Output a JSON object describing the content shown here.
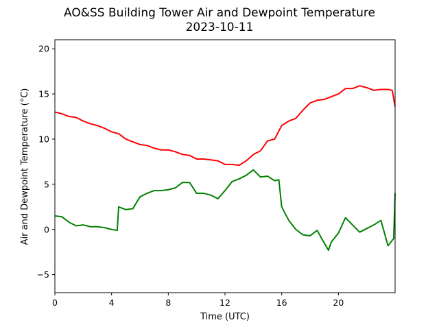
{
  "chart_data": {
    "type": "line",
    "title": "AO&SS Building Tower Air and Dewpoint Temperature",
    "subtitle": "2023-10-11",
    "xlabel": "Time (UTC)",
    "ylabel": "Air and Dewpoint Temperature (°C)",
    "xlim": [
      0,
      24
    ],
    "ylim": [
      -7,
      21
    ],
    "xticks": [
      0,
      4,
      8,
      12,
      16,
      20
    ],
    "yticks": [
      -5,
      0,
      5,
      10,
      15,
      20
    ],
    "grid": false,
    "series": [
      {
        "color": "#ff0000",
        "x": [
          0,
          0.5,
          1,
          1.5,
          2,
          2.5,
          3,
          3.5,
          4,
          4.5,
          5,
          5.5,
          6,
          6.5,
          7,
          7.5,
          8,
          8.5,
          9,
          9.5,
          10,
          10.5,
          11,
          11.5,
          12,
          12.5,
          13,
          13.5,
          14,
          14.5,
          15,
          15.5,
          16,
          16.5,
          17,
          17.5,
          18,
          18.5,
          19,
          19.5,
          20,
          20.5,
          21,
          21.5,
          22,
          22.5,
          23,
          23.5,
          23.8,
          24
        ],
        "y": [
          13.0,
          12.8,
          12.5,
          12.4,
          12.0,
          11.7,
          11.5,
          11.2,
          10.8,
          10.6,
          10.0,
          9.7,
          9.4,
          9.3,
          9.0,
          8.8,
          8.8,
          8.6,
          8.3,
          8.2,
          7.8,
          7.8,
          7.7,
          7.6,
          7.2,
          7.2,
          7.1,
          7.6,
          8.3,
          8.7,
          9.8,
          10.0,
          11.5,
          12.0,
          12.3,
          13.2,
          14.0,
          14.3,
          14.4,
          14.7,
          15.0,
          15.6,
          15.6,
          15.9,
          15.7,
          15.4,
          15.5,
          15.5,
          15.4,
          13.6
        ]
      },
      {
        "color": "#008000",
        "x": [
          0,
          0.5,
          1,
          1.5,
          2,
          2.5,
          3,
          3.5,
          4,
          4.4,
          4.5,
          5,
          5.5,
          6,
          6.5,
          7,
          7.5,
          8,
          8.5,
          9,
          9.5,
          10,
          10.5,
          11,
          11.5,
          12,
          12.5,
          13,
          13.5,
          14,
          14.5,
          15,
          15.5,
          15.8,
          16,
          16.5,
          17,
          17.5,
          18,
          18.5,
          19,
          19.3,
          19.5,
          20,
          20.5,
          21,
          21.5,
          22,
          22.5,
          23,
          23.5,
          23.9,
          24
        ],
        "y": [
          1.5,
          1.4,
          0.8,
          0.4,
          0.5,
          0.3,
          0.3,
          0.2,
          0.0,
          -0.1,
          2.5,
          2.2,
          2.3,
          3.6,
          4.0,
          4.3,
          4.3,
          4.4,
          4.6,
          5.2,
          5.2,
          4.0,
          4.0,
          3.8,
          3.4,
          4.3,
          5.3,
          5.6,
          6.0,
          6.6,
          5.8,
          5.9,
          5.4,
          5.5,
          2.5,
          1.0,
          0.0,
          -0.6,
          -0.7,
          -0.1,
          -1.5,
          -2.3,
          -1.4,
          -0.4,
          1.3,
          0.5,
          -0.3,
          0.1,
          0.5,
          1.0,
          -1.8,
          -1.0,
          4.0
        ]
      }
    ]
  }
}
